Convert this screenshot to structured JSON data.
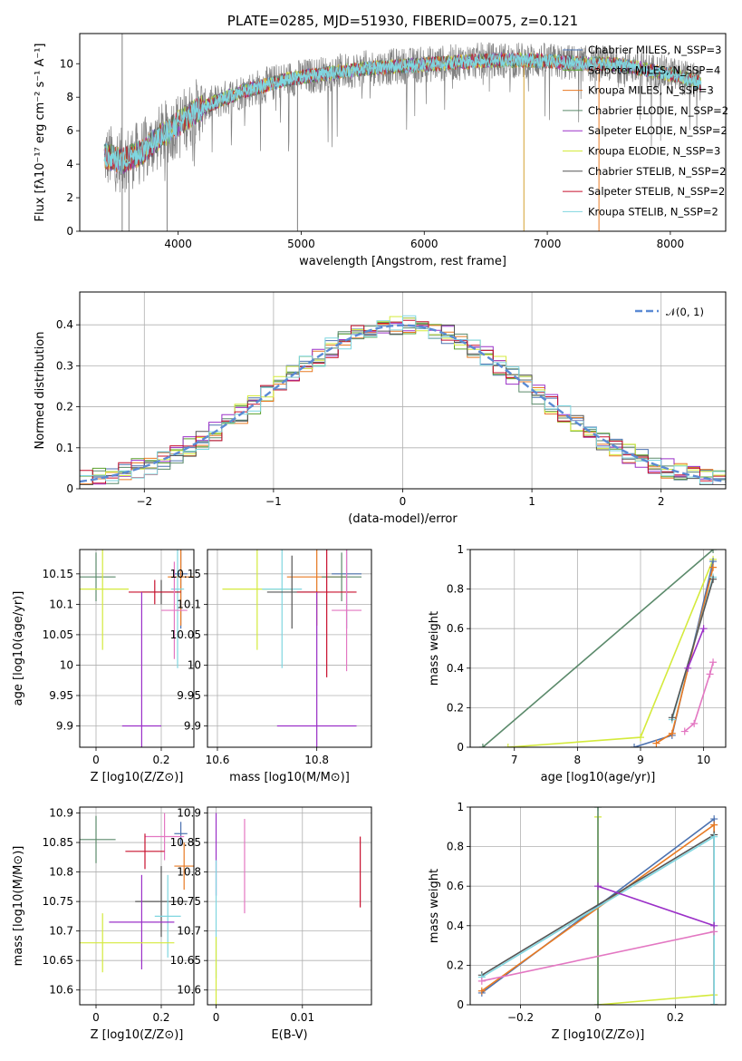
{
  "chart_data": [
    {
      "id": "spectrum",
      "type": "line",
      "title": "PLATE=0285, MJD=51930, FIBERID=0075, z=0.121",
      "xlabel": "wavelength [Angstrom, rest frame]",
      "ylabel": "Flux [fλ10⁻¹⁷ erg cm⁻² s⁻¹ A⁻¹]",
      "xlim": [
        3200,
        8450
      ],
      "ylim": [
        0,
        11.8
      ],
      "xticks": [
        4000,
        5000,
        6000,
        7000,
        8000
      ],
      "yticks": [
        0,
        2,
        4,
        6,
        8,
        10
      ],
      "legend": "upper right",
      "continuum": {
        "x": [
          3400,
          3550,
          3700,
          3850,
          4000,
          4150,
          4300,
          4500,
          4700,
          4900,
          5100,
          5300,
          5500,
          5700,
          5900,
          6100,
          6300,
          6500,
          6700,
          6900,
          7100,
          7300,
          7500,
          7700,
          7900,
          8100,
          8250
        ],
        "y": [
          4.5,
          4.2,
          4.7,
          5.6,
          6.4,
          7.2,
          7.7,
          8.3,
          8.7,
          9.1,
          9.3,
          9.5,
          9.7,
          9.8,
          9.9,
          10.0,
          10.1,
          10.2,
          10.2,
          10.2,
          10.1,
          10.0,
          10.0,
          9.8,
          9.5,
          9.2,
          8.8
        ]
      },
      "series": [
        {
          "name": "Chabrier MILES, N_SSP=3",
          "color": "#4c72b0"
        },
        {
          "name": "Salpeter MILES, N_SSP=4",
          "color": "#5aa02c"
        },
        {
          "name": "Kroupa MILES, N_SSP=3",
          "color": "#e87a23"
        },
        {
          "name": "Chabrier ELODIE, N_SSP=2",
          "color": "#5b8a6b"
        },
        {
          "name": "Salpeter ELODIE, N_SSP=2",
          "color": "#9b30c8"
        },
        {
          "name": "Kroupa ELODIE, N_SSP=3",
          "color": "#d4ea3c"
        },
        {
          "name": "Chabrier STELIB, N_SSP=2",
          "color": "#555555"
        },
        {
          "name": "Salpeter STELIB, N_SSP=2",
          "color": "#c8102e"
        },
        {
          "name": "Kroupa STELIB, N_SSP=2",
          "color": "#7fd6e0"
        }
      ],
      "data_color": "#808080"
    },
    {
      "id": "residuals",
      "type": "line",
      "xlabel": "(data-model)/error",
      "ylabel": "Normed distribution",
      "xlim": [
        -2.5,
        2.5
      ],
      "ylim": [
        0,
        0.48
      ],
      "xticks": [
        -2,
        -1,
        0,
        1,
        2
      ],
      "yticks": [
        0.0,
        0.1,
        0.2,
        0.3,
        0.4
      ],
      "grid": true,
      "legend": "upper right",
      "gaussian_label": "𝒩(0, 1)",
      "gaussian_color": "#5b8ad4"
    },
    {
      "id": "age_vs_Z",
      "type": "scatter",
      "xlabel": "Z [log10(Z/Z⊙)]",
      "ylabel": "age  [log10(age/yr)]",
      "xlim": [
        -0.05,
        0.3
      ],
      "ylim": [
        9.865,
        10.19
      ],
      "xticks": [
        0.0,
        0.2
      ],
      "yticks": [
        9.9,
        9.95,
        10.0,
        10.05,
        10.1,
        10.15
      ],
      "grid": true,
      "points": [
        {
          "x": 0.0,
          "xerr": 0.06,
          "y": 10.145,
          "yerr": 0.04,
          "color": "#5b8a6b"
        },
        {
          "x": 0.26,
          "xerr": 0.02,
          "y": 10.15,
          "yerr": 0.09,
          "color": "#4c72b0"
        },
        {
          "x": 0.26,
          "xerr": 0.04,
          "y": 10.145,
          "yerr": 0.08,
          "color": "#e87a23"
        },
        {
          "x": 0.02,
          "xerr": 0.08,
          "y": 10.125,
          "yerr": 0.1,
          "color": "#d4ea3c"
        },
        {
          "x": 0.25,
          "xerr": 0.02,
          "y": 10.125,
          "yerr": 0.13,
          "color": "#7fd6e0"
        },
        {
          "x": 0.2,
          "xerr": 0.06,
          "y": 10.12,
          "yerr": 0.02,
          "color": "#555555"
        },
        {
          "x": 0.18,
          "xerr": 0.08,
          "y": 10.12,
          "yerr": 0.02,
          "color": "#c8102e"
        },
        {
          "x": 0.24,
          "xerr": 0.04,
          "y": 10.09,
          "yerr": 0.08,
          "color": "#e377c2"
        },
        {
          "x": 0.14,
          "xerr": 0.06,
          "y": 9.9,
          "yerr": 0.22,
          "color": "#9b30c8"
        }
      ]
    },
    {
      "id": "age_vs_mass",
      "type": "scatter",
      "xlabel": "mass [log10(M/M⊙)]",
      "xlim": [
        10.58,
        10.91
      ],
      "ylim": [
        9.865,
        10.19
      ],
      "xticks": [
        10.6,
        10.8
      ],
      "yticks": [
        9.9,
        9.95,
        10.0,
        10.05,
        10.1,
        10.15
      ],
      "grid": true,
      "points": [
        {
          "x": 10.86,
          "xerr": 0.03,
          "y": 10.15,
          "yerr": 0.09,
          "color": "#4c72b0"
        },
        {
          "x": 10.8,
          "xerr": 0.06,
          "y": 10.145,
          "yerr": 0.08,
          "color": "#e87a23"
        },
        {
          "x": 10.85,
          "xerr": 0.04,
          "y": 10.145,
          "yerr": 0.04,
          "color": "#5b8a6b"
        },
        {
          "x": 10.68,
          "xerr": 0.07,
          "y": 10.125,
          "yerr": 0.1,
          "color": "#d4ea3c"
        },
        {
          "x": 10.73,
          "xerr": 0.04,
          "y": 10.125,
          "yerr": 0.13,
          "color": "#7fd6e0"
        },
        {
          "x": 10.75,
          "xerr": 0.05,
          "y": 10.12,
          "yerr": 0.06,
          "color": "#555555"
        },
        {
          "x": 10.82,
          "xerr": 0.06,
          "y": 10.12,
          "yerr": 0.14,
          "color": "#c8102e"
        },
        {
          "x": 10.86,
          "xerr": 0.03,
          "y": 10.09,
          "yerr": 0.1,
          "color": "#e377c2"
        },
        {
          "x": 10.8,
          "xerr": 0.08,
          "y": 9.9,
          "yerr": 0.22,
          "color": "#9b30c8"
        }
      ]
    },
    {
      "id": "mass_weight_vs_age",
      "type": "line",
      "xlabel": "age  [log10(age/yr)]",
      "ylabel": "mass weight",
      "xlim": [
        6.3,
        10.35
      ],
      "ylim": [
        0.0,
        1.0
      ],
      "xticks": [
        7,
        8,
        9,
        10
      ],
      "yticks": [
        0.0,
        0.2,
        0.4,
        0.6,
        0.8,
        1.0
      ],
      "grid": true,
      "series": [
        {
          "color": "#5b8a6b",
          "x": [
            6.5,
            10.15
          ],
          "y": [
            0.0,
            1.0
          ]
        },
        {
          "color": "#d4ea3c",
          "x": [
            6.9,
            9.0,
            10.15
          ],
          "y": [
            0.0,
            0.05,
            0.95
          ]
        },
        {
          "color": "#4c72b0",
          "x": [
            8.9,
            9.5,
            10.15
          ],
          "y": [
            0.0,
            0.06,
            0.94
          ]
        },
        {
          "color": "#e87a23",
          "x": [
            9.25,
            9.5,
            10.15
          ],
          "y": [
            0.02,
            0.07,
            0.91
          ]
        },
        {
          "color": "#7fd6e0",
          "x": [
            9.5,
            10.15
          ],
          "y": [
            0.14,
            0.86
          ]
        },
        {
          "color": "#555555",
          "x": [
            9.5,
            10.15
          ],
          "y": [
            0.15,
            0.85
          ]
        },
        {
          "color": "#9b30c8",
          "x": [
            9.75,
            10.0
          ],
          "y": [
            0.4,
            0.6
          ]
        },
        {
          "color": "#e377c2",
          "x": [
            9.7,
            9.85,
            10.1,
            10.15
          ],
          "y": [
            0.08,
            0.12,
            0.37,
            0.43
          ]
        }
      ]
    },
    {
      "id": "mass_vs_Z",
      "type": "scatter",
      "xlabel": "Z [log10(Z/Z⊙)]",
      "ylabel": "mass [log10(M/M⊙)]",
      "xlim": [
        -0.05,
        0.3
      ],
      "ylim": [
        10.575,
        10.91
      ],
      "xticks": [
        0.0,
        0.2
      ],
      "yticks": [
        10.6,
        10.65,
        10.7,
        10.75,
        10.8,
        10.85,
        10.9
      ],
      "grid": true,
      "points": [
        {
          "x": 0.0,
          "xerr": 0.06,
          "y": 10.855,
          "yerr": 0.04,
          "color": "#5b8a6b"
        },
        {
          "x": 0.26,
          "xerr": 0.02,
          "y": 10.865,
          "yerr": 0.02,
          "color": "#4c72b0"
        },
        {
          "x": 0.21,
          "xerr": 0.06,
          "y": 10.86,
          "yerr": 0.04,
          "color": "#e377c2"
        },
        {
          "x": 0.15,
          "xerr": 0.06,
          "y": 10.835,
          "yerr": 0.03,
          "color": "#c8102e"
        },
        {
          "x": 0.27,
          "xerr": 0.03,
          "y": 10.81,
          "yerr": 0.04,
          "color": "#e87a23"
        },
        {
          "x": 0.2,
          "xerr": 0.08,
          "y": 10.75,
          "yerr": 0.06,
          "color": "#555555"
        },
        {
          "x": 0.22,
          "xerr": 0.04,
          "y": 10.725,
          "yerr": 0.07,
          "color": "#7fd6e0"
        },
        {
          "x": 0.14,
          "xerr": 0.1,
          "y": 10.715,
          "yerr": 0.08,
          "color": "#9b30c8"
        },
        {
          "x": 0.02,
          "xerr": 0.22,
          "y": 10.68,
          "yerr": 0.05,
          "color": "#d4ea3c"
        }
      ]
    },
    {
      "id": "mass_vs_EBV",
      "type": "scatter",
      "xlabel": "E(B-V)",
      "xlim": [
        -0.001,
        0.018
      ],
      "ylim": [
        10.575,
        10.91
      ],
      "xticks": [
        0.0,
        0.01
      ],
      "yticks": [
        10.6,
        10.65,
        10.7,
        10.75,
        10.8,
        10.85,
        10.9
      ],
      "grid": true,
      "points": [
        {
          "x": 0.0,
          "y": 10.83,
          "yerr": 0.07,
          "color": "#9b30c8"
        },
        {
          "x": 0.0,
          "y": 10.72,
          "yerr": 0.1,
          "color": "#7fd6e0"
        },
        {
          "x": 0.0,
          "y": 10.63,
          "yerr": 0.06,
          "color": "#d4ea3c"
        },
        {
          "x": 0.0033,
          "y": 10.81,
          "yerr": 0.08,
          "color": "#e377c2"
        },
        {
          "x": 0.0167,
          "y": 10.8,
          "yerr": 0.06,
          "color": "#c8102e"
        }
      ]
    },
    {
      "id": "mass_weight_vs_Z",
      "type": "line",
      "xlabel": "Z [log10(Z/Z⊙)]",
      "ylabel": "mass weight",
      "xlim": [
        -0.33,
        0.33
      ],
      "ylim": [
        0.0,
        1.0
      ],
      "xticks": [
        -0.2,
        0.0,
        0.2
      ],
      "yticks": [
        0.0,
        0.2,
        0.4,
        0.6,
        0.8,
        1.0
      ],
      "grid": true,
      "series": [
        {
          "color": "#d4ea3c",
          "x": [
            0.0,
            0.0,
            0.3
          ],
          "y": [
            0.95,
            0.0,
            0.05
          ]
        },
        {
          "color": "#5b8a6b",
          "x": [
            0.0,
            0.0
          ],
          "y": [
            0.0,
            1.0
          ]
        },
        {
          "color": "#4c72b0",
          "x": [
            -0.3,
            0.3,
            0.3
          ],
          "y": [
            0.06,
            0.94,
            0.0
          ]
        },
        {
          "color": "#e87a23",
          "x": [
            -0.3,
            0.3,
            0.3
          ],
          "y": [
            0.07,
            0.91,
            0.0
          ]
        },
        {
          "color": "#555555",
          "x": [
            -0.3,
            0.3,
            0.3
          ],
          "y": [
            0.15,
            0.86,
            0.0
          ]
        },
        {
          "color": "#7fd6e0",
          "x": [
            -0.3,
            0.3,
            0.3
          ],
          "y": [
            0.14,
            0.85,
            0.0
          ]
        },
        {
          "color": "#9b30c8",
          "x": [
            0.0,
            0.3
          ],
          "y": [
            0.6,
            0.4
          ]
        },
        {
          "color": "#e377c2",
          "x": [
            -0.3,
            0.3
          ],
          "y": [
            0.12,
            0.37
          ]
        }
      ]
    }
  ]
}
